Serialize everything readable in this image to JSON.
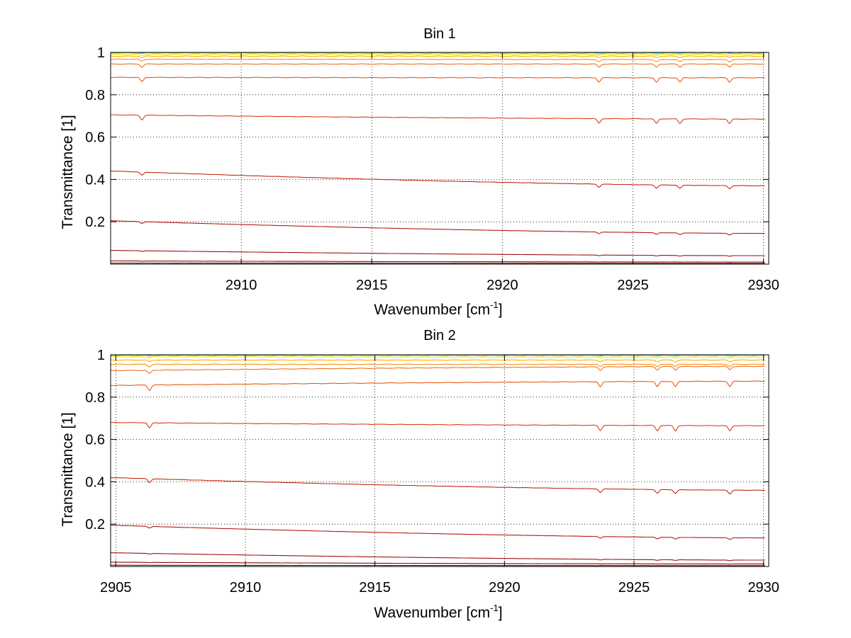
{
  "chart_data": [
    {
      "type": "line",
      "title": "Bin 1",
      "xlabel_main": "Wavenumber [cm",
      "xlabel_sup": "-1",
      "xlabel_end": "]",
      "ylabel": "Transmittance [1]",
      "xlim": [
        2905,
        2930.2
      ],
      "ylim": [
        0,
        1
      ],
      "xticks": [
        2910,
        2915,
        2920,
        2925,
        2930
      ],
      "xtick_labels": [
        "2910",
        "2915",
        "2920",
        "2925",
        "2930"
      ],
      "yticks": [
        0.2,
        0.4,
        0.6,
        0.8,
        1
      ],
      "ytick_labels": [
        "0.2",
        "0.4",
        "0.6",
        "0.8",
        "1"
      ],
      "grid": true,
      "dips": [
        6.2,
        23.7,
        25.9,
        26.8,
        28.7
      ],
      "series": [
        {
          "start": 0.999,
          "end": 0.999,
          "color": "#00bfff",
          "dip": 0.002
        },
        {
          "start": 0.997,
          "end": 0.996,
          "color": "#7fd35a",
          "dip": 0.003
        },
        {
          "start": 0.99,
          "end": 0.99,
          "color": "#ffe400",
          "dip": 0.005
        },
        {
          "start": 0.982,
          "end": 0.982,
          "color": "#ffb000",
          "dip": 0.007
        },
        {
          "start": 0.968,
          "end": 0.966,
          "color": "#f89010",
          "dip": 0.01
        },
        {
          "start": 0.945,
          "end": 0.945,
          "color": "#f07020",
          "dip": 0.015
        },
        {
          "start": 0.882,
          "end": 0.88,
          "color": "#e85a10",
          "dip": 0.02
        },
        {
          "start": 0.705,
          "end": 0.685,
          "color": "#d84015",
          "dip": 0.022
        },
        {
          "start": 0.44,
          "end": 0.37,
          "color": "#c42a10",
          "dip": 0.015
        },
        {
          "start": 0.205,
          "end": 0.145,
          "color": "#b41c10",
          "dip": 0.008
        },
        {
          "start": 0.065,
          "end": 0.04,
          "color": "#a01010",
          "dip": 0.003
        },
        {
          "start": 0.015,
          "end": 0.01,
          "color": "#8a0808",
          "dip": 0.001
        },
        {
          "start": 0.005,
          "end": 0.004,
          "color": "#700000",
          "dip": 0.0
        }
      ]
    },
    {
      "type": "line",
      "title": "Bin 2",
      "xlabel_main": "Wavenumber [cm",
      "xlabel_sup": "-1",
      "xlabel_end": "]",
      "ylabel": "Transmittance [1]",
      "xlim": [
        2904.8,
        2930.2
      ],
      "ylim": [
        0,
        1
      ],
      "xticks": [
        2905,
        2910,
        2915,
        2920,
        2925,
        2930
      ],
      "xtick_labels": [
        "2905",
        "2910",
        "2915",
        "2920",
        "2925",
        "2930"
      ],
      "yticks": [
        0.2,
        0.4,
        0.6,
        0.8,
        1
      ],
      "ytick_labels": [
        "0.2",
        "0.4",
        "0.6",
        "0.8",
        "1"
      ],
      "grid": true,
      "dips": [
        6.3,
        23.7,
        25.9,
        26.6,
        28.7
      ],
      "series": [
        {
          "start": 0.999,
          "end": 0.999,
          "color": "#00bfff",
          "dip": 0.002
        },
        {
          "start": 0.996,
          "end": 0.996,
          "color": "#7fd35a",
          "dip": 0.003
        },
        {
          "start": 0.99,
          "end": 0.988,
          "color": "#ffe400",
          "dip": 0.005
        },
        {
          "start": 0.975,
          "end": 0.975,
          "color": "#ffb000",
          "dip": 0.008
        },
        {
          "start": 0.955,
          "end": 0.955,
          "color": "#f89010",
          "dip": 0.012
        },
        {
          "start": 0.925,
          "end": 0.945,
          "color": "#f07020",
          "dip": 0.016
        },
        {
          "start": 0.855,
          "end": 0.875,
          "color": "#e85a10",
          "dip": 0.025
        },
        {
          "start": 0.68,
          "end": 0.665,
          "color": "#d84015",
          "dip": 0.025
        },
        {
          "start": 0.42,
          "end": 0.36,
          "color": "#c42a10",
          "dip": 0.018
        },
        {
          "start": 0.195,
          "end": 0.135,
          "color": "#b41c10",
          "dip": 0.008
        },
        {
          "start": 0.065,
          "end": 0.03,
          "color": "#a01010",
          "dip": 0.003
        },
        {
          "start": 0.02,
          "end": 0.012,
          "color": "#8a0808",
          "dip": 0.001
        },
        {
          "start": 0.006,
          "end": 0.004,
          "color": "#700000",
          "dip": 0.0
        }
      ]
    }
  ]
}
